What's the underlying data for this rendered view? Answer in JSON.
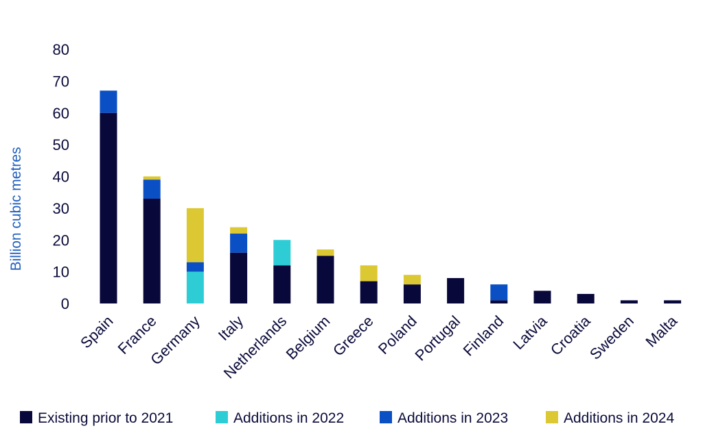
{
  "chart_data": {
    "type": "bar",
    "stacked": true,
    "title": "",
    "xlabel": "",
    "ylabel": "Billion cubic metres",
    "ylim": [
      0,
      80
    ],
    "yticks": [
      0,
      10,
      20,
      30,
      40,
      50,
      60,
      70,
      80
    ],
    "grid": false,
    "legend_position": "bottom",
    "categories": [
      "Spain",
      "France",
      "Germany",
      "Italy",
      "Netherlands",
      "Belgium",
      "Greece",
      "Poland",
      "Portugal",
      "Finland",
      "Latvia",
      "Croatia",
      "Sweden",
      "Malta"
    ],
    "series": [
      {
        "name": "Existing prior to 2021",
        "color": "#08083b",
        "values": [
          60,
          33,
          0,
          16,
          12,
          15,
          7,
          6,
          8,
          1,
          4,
          3,
          1,
          1
        ]
      },
      {
        "name": "Additions in 2022",
        "color": "#2ecdd6",
        "values": [
          0,
          0,
          10,
          0,
          8,
          0,
          0,
          0,
          0,
          0,
          0,
          0,
          0,
          0
        ]
      },
      {
        "name": "Additions in 2023",
        "color": "#0a4fc4",
        "values": [
          7,
          6,
          3,
          6,
          0,
          0,
          0,
          0,
          0,
          5,
          0,
          0,
          0,
          0
        ]
      },
      {
        "name": "Additions in 2024",
        "color": "#dcc832",
        "values": [
          0,
          1,
          17,
          2,
          0,
          2,
          5,
          3,
          0,
          0,
          0,
          0,
          0,
          0
        ]
      }
    ],
    "ylabel_color": "#1f5fbf",
    "text_color": "#0a0a3a"
  }
}
